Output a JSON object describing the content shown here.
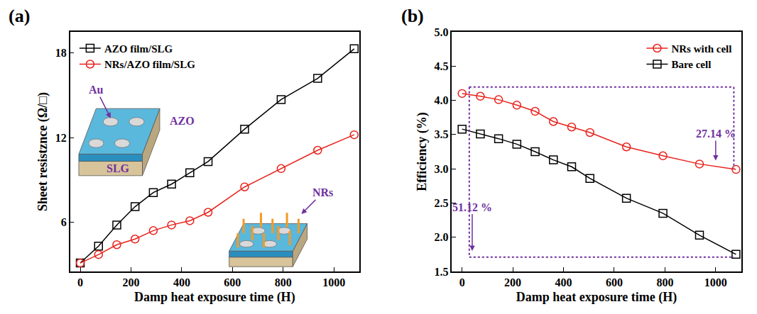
{
  "chart_data": [
    {
      "panel": "(a)",
      "type": "line",
      "x_label": "Damp heat exposure time (H)",
      "y_label": "Sheet resistznce (Ω/□)",
      "x": [
        0,
        72,
        144,
        216,
        288,
        360,
        432,
        504,
        648,
        792,
        936,
        1080
      ],
      "series": [
        {
          "name": "AZO film/SLG",
          "color": "#000000",
          "marker": "square",
          "line_style": "solid",
          "values": [
            3.1,
            4.3,
            5.8,
            7.1,
            8.1,
            8.7,
            9.5,
            10.3,
            12.6,
            14.7,
            16.2,
            18.3
          ]
        },
        {
          "name": "NRs/AZO film/SLG",
          "color": "#e8231c",
          "marker": "circle",
          "line_style": "solid",
          "values": [
            3.1,
            3.7,
            4.4,
            4.8,
            5.4,
            5.8,
            6.1,
            6.7,
            8.5,
            9.8,
            11.1,
            12.2
          ]
        }
      ],
      "xlim": [
        -40,
        1100
      ],
      "xticks": [
        0,
        200,
        400,
        600,
        800,
        1000
      ],
      "ylim": [
        2.5,
        19.5
      ],
      "yticks": [
        6,
        12,
        18
      ],
      "grid": false,
      "legend": "upper left",
      "inset_labels": [
        "Au",
        "AZO",
        "SLG",
        "NRs"
      ]
    },
    {
      "panel": "(b)",
      "type": "line",
      "x_label": "Damp heat exposure time (H)",
      "y_label": "Efficiency (%)",
      "x": [
        0,
        72,
        144,
        216,
        288,
        360,
        432,
        504,
        648,
        792,
        936,
        1080
      ],
      "series": [
        {
          "name": "NRs with cell",
          "color": "#e8231c",
          "marker": "circle",
          "line_style": "solid",
          "values": [
            4.1,
            4.06,
            4.01,
            3.93,
            3.84,
            3.69,
            3.61,
            3.53,
            3.32,
            3.19,
            3.07,
            2.99
          ]
        },
        {
          "name": "Bare cell",
          "color": "#000000",
          "marker": "square",
          "line_style": "solid",
          "values": [
            3.58,
            3.51,
            3.44,
            3.36,
            3.25,
            3.13,
            3.03,
            2.86,
            2.57,
            2.35,
            2.03,
            1.75
          ]
        }
      ],
      "xlim": [
        -40,
        1100
      ],
      "xticks": [
        0,
        200,
        400,
        600,
        800,
        1000
      ],
      "ylim": [
        1.5,
        5.0
      ],
      "yticks": [
        {
          "value": 1.5,
          "label": "1.5"
        },
        {
          "value": 2.0,
          "label": "2.0"
        },
        {
          "value": 2.5,
          "label": "2.5"
        },
        {
          "value": 3.0,
          "label": "3.0"
        },
        {
          "value": 3.5,
          "label": "3.5"
        },
        {
          "value": 4.0,
          "label": "4.0"
        },
        {
          "value": 4.5,
          "label": "4.5"
        },
        {
          "value": 5.0,
          "label": "5.0"
        }
      ],
      "grid": false,
      "legend": "upper right",
      "annotations": [
        {
          "text": "27.14 %",
          "x": 1000,
          "y": 3.12
        },
        {
          "text": "51.12 %",
          "x": 40,
          "y": 1.8
        }
      ]
    }
  ]
}
